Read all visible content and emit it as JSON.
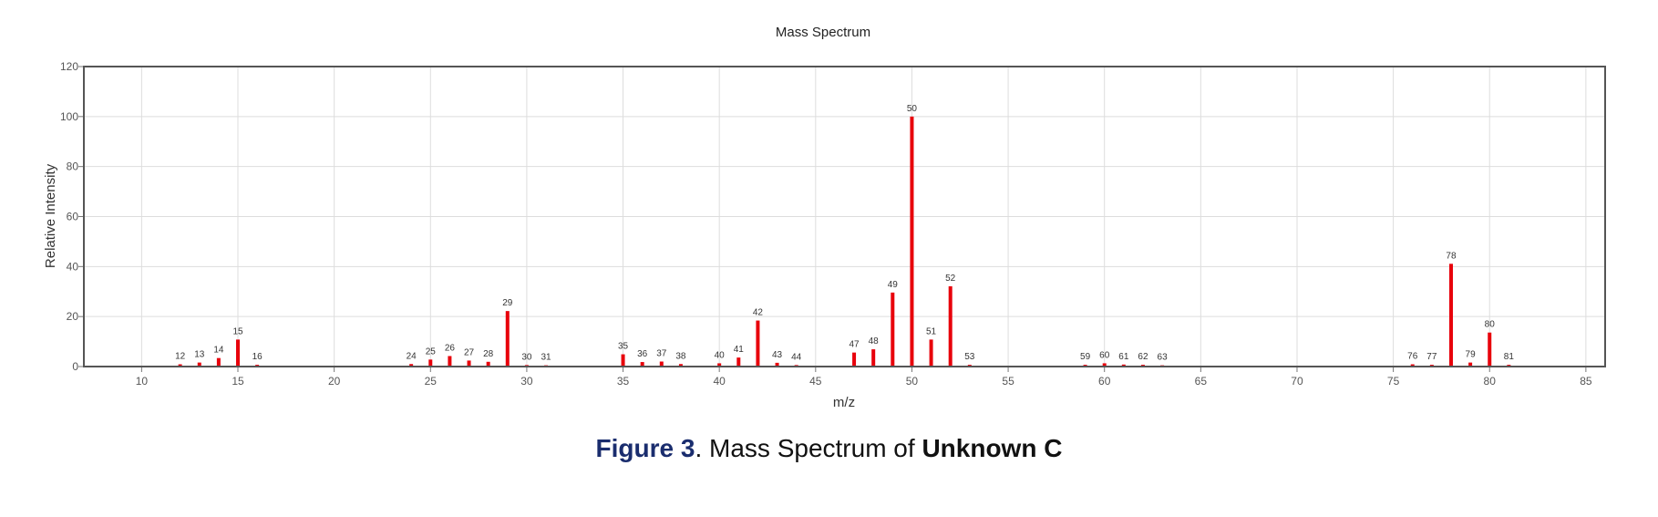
{
  "chart_data": {
    "type": "bar",
    "title": "Mass Spectrum",
    "xlabel": "m/z",
    "ylabel": "Relative Intensity",
    "xlim": [
      7,
      86
    ],
    "ylim": [
      0,
      120
    ],
    "xticks": [
      10,
      15,
      20,
      25,
      30,
      35,
      40,
      45,
      50,
      55,
      60,
      65,
      70,
      75,
      80,
      85
    ],
    "yticks": [
      0,
      20,
      40,
      60,
      80,
      100,
      120
    ],
    "grid": true,
    "bar_color": "#e8000b",
    "peaks": [
      {
        "mz": 12,
        "intensity": 0.9
      },
      {
        "mz": 13,
        "intensity": 1.6
      },
      {
        "mz": 14,
        "intensity": 3.4
      },
      {
        "mz": 15,
        "intensity": 10.8
      },
      {
        "mz": 16,
        "intensity": 0.7
      },
      {
        "mz": 24,
        "intensity": 1.0
      },
      {
        "mz": 25,
        "intensity": 2.8
      },
      {
        "mz": 26,
        "intensity": 4.2
      },
      {
        "mz": 27,
        "intensity": 2.4
      },
      {
        "mz": 28,
        "intensity": 1.9
      },
      {
        "mz": 29,
        "intensity": 22.2
      },
      {
        "mz": 30,
        "intensity": 0.6
      },
      {
        "mz": 31,
        "intensity": 0.5
      },
      {
        "mz": 35,
        "intensity": 4.9
      },
      {
        "mz": 36,
        "intensity": 1.8
      },
      {
        "mz": 37,
        "intensity": 2.0
      },
      {
        "mz": 38,
        "intensity": 1.0
      },
      {
        "mz": 40,
        "intensity": 1.3
      },
      {
        "mz": 41,
        "intensity": 3.6
      },
      {
        "mz": 42,
        "intensity": 18.4
      },
      {
        "mz": 43,
        "intensity": 1.5
      },
      {
        "mz": 44,
        "intensity": 0.6
      },
      {
        "mz": 47,
        "intensity": 5.6
      },
      {
        "mz": 48,
        "intensity": 6.9
      },
      {
        "mz": 49,
        "intensity": 29.6
      },
      {
        "mz": 50,
        "intensity": 100
      },
      {
        "mz": 51,
        "intensity": 10.8
      },
      {
        "mz": 52,
        "intensity": 32.1
      },
      {
        "mz": 53,
        "intensity": 0.7
      },
      {
        "mz": 59,
        "intensity": 0.7
      },
      {
        "mz": 60,
        "intensity": 1.3
      },
      {
        "mz": 61,
        "intensity": 0.8
      },
      {
        "mz": 62,
        "intensity": 0.7
      },
      {
        "mz": 63,
        "intensity": 0.5
      },
      {
        "mz": 76,
        "intensity": 0.9
      },
      {
        "mz": 77,
        "intensity": 0.7
      },
      {
        "mz": 78,
        "intensity": 41.1
      },
      {
        "mz": 79,
        "intensity": 1.6
      },
      {
        "mz": 80,
        "intensity": 13.6
      },
      {
        "mz": 81,
        "intensity": 0.7
      }
    ]
  },
  "caption": {
    "figure_label": "Figure 3",
    "text_middle": ". Mass Spectrum of ",
    "subject": "Unknown C"
  }
}
